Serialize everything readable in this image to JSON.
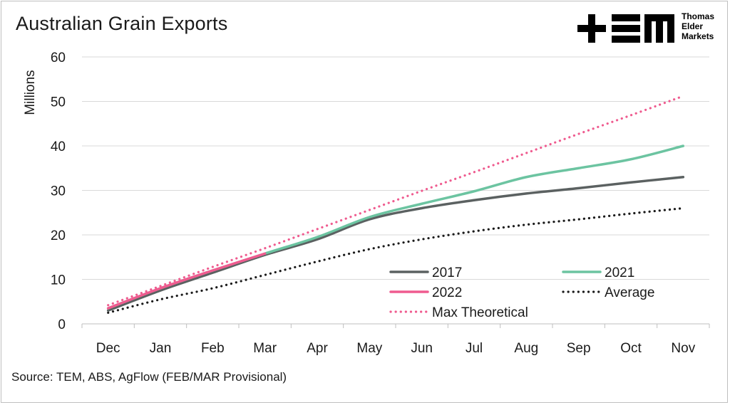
{
  "title": "Australian Grain Exports",
  "source": "Source: TEM, ABS, AgFlow (FEB/MAR Provisional)",
  "logo": {
    "mark": "TEM",
    "lines": [
      "Thomas",
      "Elder",
      "Markets"
    ]
  },
  "colors": {
    "s2017": "#5b6161",
    "s2021": "#6cc4a1",
    "s2022": "#ef5b8f",
    "average": "#1a1a1a",
    "max": "#ef5b8f",
    "grid": "#d9d9d9"
  },
  "chart_data": {
    "type": "line",
    "ylabel": "Millions",
    "xlabel": "",
    "ylim": [
      0,
      60
    ],
    "yticks": [
      0,
      10,
      20,
      30,
      40,
      50,
      60
    ],
    "grid": "horizontal",
    "legend_position": "bottom-right",
    "categories": [
      "Dec",
      "Jan",
      "Feb",
      "Mar",
      "Apr",
      "May",
      "Jun",
      "Jul",
      "Aug",
      "Sep",
      "Oct",
      "Nov"
    ],
    "series": [
      {
        "name": "2017",
        "style": "solid",
        "color": "#5b6161",
        "values": [
          3.0,
          7.5,
          11.5,
          15.5,
          19.0,
          23.5,
          26.0,
          27.8,
          29.3,
          30.5,
          31.8,
          33.0
        ]
      },
      {
        "name": "2021",
        "style": "solid",
        "color": "#6cc4a1",
        "values": [
          3.5,
          8.0,
          12.0,
          15.8,
          19.5,
          24.0,
          27.0,
          29.8,
          33.0,
          35.0,
          37.0,
          40.0
        ]
      },
      {
        "name": "2022",
        "style": "solid",
        "color": "#ef5b8f",
        "values": [
          3.5,
          8.0,
          12.0,
          15.8,
          null,
          null,
          null,
          null,
          null,
          null,
          null,
          null
        ]
      },
      {
        "name": "Average",
        "style": "dotted",
        "color": "#1a1a1a",
        "values": [
          2.5,
          5.5,
          8.0,
          11.0,
          14.0,
          16.8,
          19.0,
          20.8,
          22.3,
          23.5,
          24.8,
          26.0
        ]
      },
      {
        "name": "Max Theoretical",
        "style": "dotted",
        "color": "#ef5b8f",
        "values": [
          4.2,
          8.5,
          12.8,
          17.0,
          21.3,
          25.6,
          29.9,
          34.1,
          38.4,
          42.7,
          46.9,
          51.2
        ]
      }
    ]
  }
}
